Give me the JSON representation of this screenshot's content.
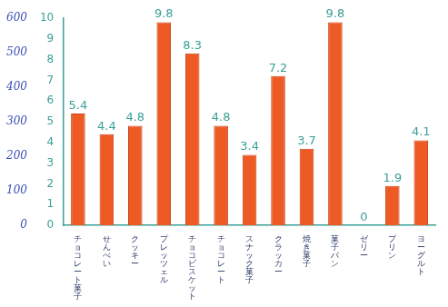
{
  "chart_data": {
    "type": "bar",
    "categories": [
      "チョコレート菓子",
      "せんべい",
      "クッキー",
      "プレッツェル",
      "チョコビスケット",
      "チョコレート",
      "スナック菓子",
      "クラッカー",
      "焼き菓子",
      "菓子パン",
      "ゼリー",
      "プリン",
      "ヨーグルト"
    ],
    "values": [
      5.4,
      4.4,
      4.8,
      9.8,
      8.3,
      4.8,
      3.4,
      7.2,
      3.7,
      9.8,
      0,
      1.9,
      4.1
    ],
    "color": "#ee5a24",
    "ylim": [
      0,
      10
    ],
    "yticks": [
      0,
      1,
      2,
      3,
      4,
      5,
      6,
      7,
      8,
      9,
      10
    ],
    "y2lim": [
      0,
      600
    ],
    "y2ticks": [
      0,
      100,
      200,
      300,
      400,
      500,
      600
    ],
    "grid": false,
    "data_labels": true
  }
}
